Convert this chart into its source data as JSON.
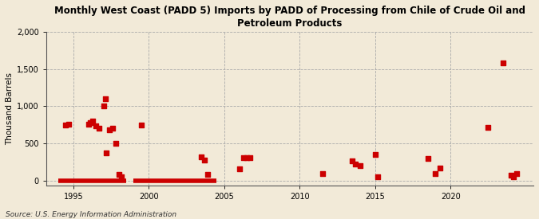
{
  "title": "Monthly West Coast (PADD 5) Imports by PADD of Processing from Chile of Crude Oil and\nPetroleum Products",
  "ylabel": "Thousand Barrels",
  "source": "Source: U.S. Energy Information Administration",
  "background_color": "#f2ead8",
  "plot_bg_color": "#f2ead8",
  "marker_color": "#cc0000",
  "marker_size": 5,
  "xlim": [
    1993.2,
    2025.5
  ],
  "ylim": [
    -60,
    2000
  ],
  "yticks": [
    0,
    500,
    1000,
    1500,
    2000
  ],
  "xticks": [
    1995,
    2000,
    2005,
    2010,
    2015,
    2020
  ],
  "data_points": [
    [
      1994.5,
      750
    ],
    [
      1994.7,
      760
    ],
    [
      1996.0,
      760
    ],
    [
      1996.1,
      780
    ],
    [
      1996.3,
      800
    ],
    [
      1996.5,
      740
    ],
    [
      1996.7,
      700
    ],
    [
      1997.0,
      1000
    ],
    [
      1997.1,
      1100
    ],
    [
      1997.2,
      370
    ],
    [
      1997.4,
      680
    ],
    [
      1997.6,
      700
    ],
    [
      1997.8,
      500
    ],
    [
      1998.0,
      80
    ],
    [
      1998.2,
      50
    ],
    [
      1999.5,
      750
    ],
    [
      2003.5,
      320
    ],
    [
      2003.7,
      280
    ],
    [
      2003.9,
      80
    ],
    [
      2006.0,
      160
    ],
    [
      2006.3,
      310
    ],
    [
      2006.5,
      310
    ],
    [
      2006.7,
      310
    ],
    [
      2011.5,
      100
    ],
    [
      2013.5,
      270
    ],
    [
      2013.7,
      220
    ],
    [
      2014.0,
      200
    ],
    [
      2015.0,
      350
    ],
    [
      2015.2,
      50
    ],
    [
      2018.5,
      300
    ],
    [
      2019.0,
      100
    ],
    [
      2019.3,
      170
    ],
    [
      2022.5,
      720
    ],
    [
      2023.5,
      1580
    ],
    [
      2024.0,
      70
    ],
    [
      2024.2,
      50
    ],
    [
      2024.4,
      100
    ]
  ],
  "zero_line_segments": [
    [
      [
        1994.0,
        1998.5
      ],
      [
        0,
        0
      ]
    ],
    [
      [
        1999.0,
        2004.5
      ],
      [
        0,
        0
      ]
    ]
  ]
}
